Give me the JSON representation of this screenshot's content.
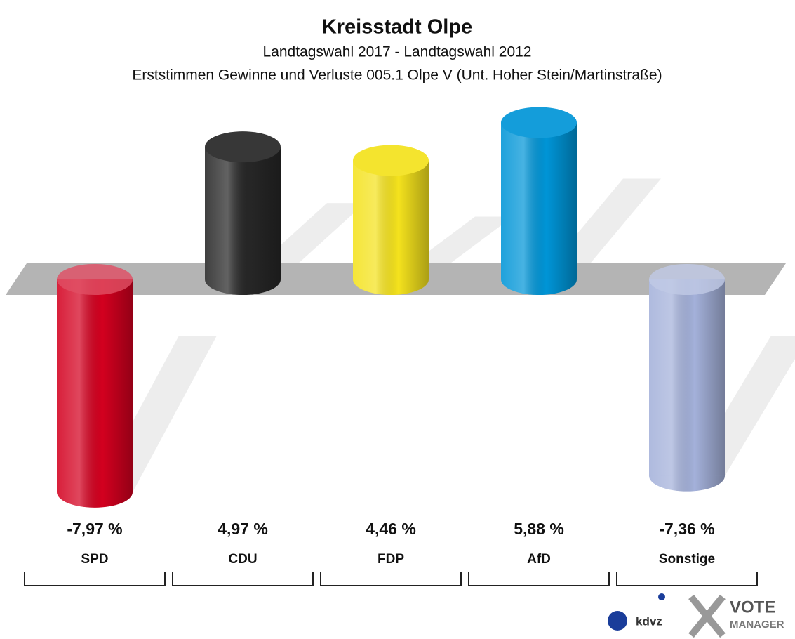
{
  "chart_data": {
    "type": "bar",
    "title": "Kreisstadt Olpe",
    "subtitle": "Landtagswahl 2017 - Landtagswahl 2012",
    "subtitle2": "Erststimmen Gewinne und Verluste 005.1 Olpe V (Unt. Hoher Stein/Martinstraße)",
    "categories": [
      "SPD",
      "CDU",
      "FDP",
      "AfD",
      "Sonstige"
    ],
    "values": [
      -7.97,
      4.97,
      4.46,
      5.88,
      -7.36
    ],
    "value_labels": [
      "-7,97 %",
      "4,97 %",
      "4,46 %",
      "5,88 %",
      "-7,36 %"
    ],
    "colors": [
      "#d3001f",
      "#262626",
      "#f4e21d",
      "#0095d7",
      "#a4b1da"
    ]
  },
  "logo": {
    "kdvz": "kdvz",
    "vote": "VOTE",
    "manager": "MANAGER"
  }
}
